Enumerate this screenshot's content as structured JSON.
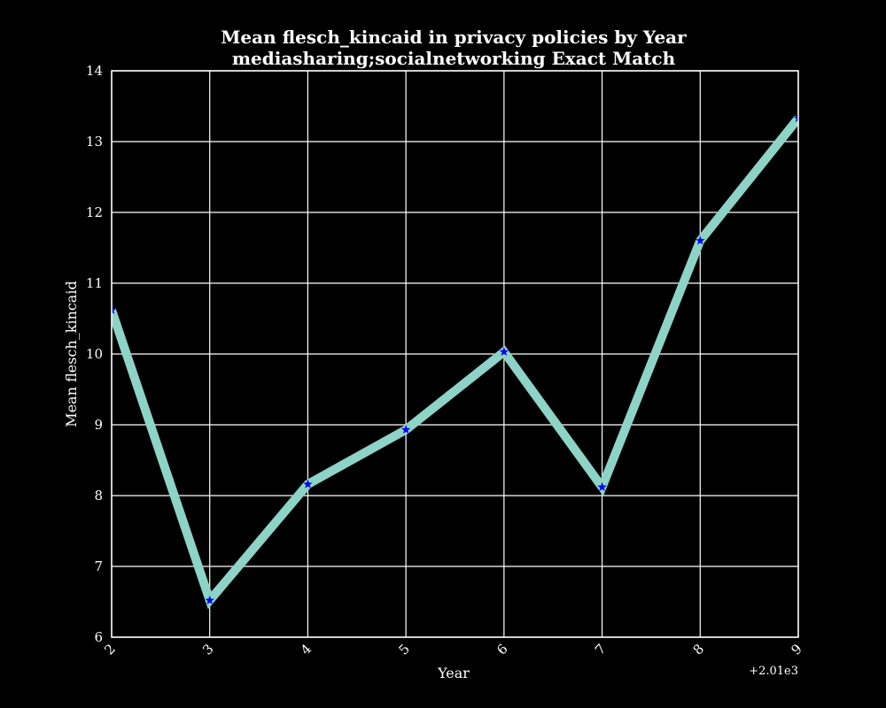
{
  "chart_data": {
    "type": "line",
    "title": "Mean flesch_kincaid in privacy policies by Year",
    "subtitle": "mediasharing;socialnetworking Exact Match",
    "xlabel": "Year",
    "ylabel": "Mean flesch_kincaid",
    "x_offset_label": "+2.01e3",
    "x": [
      2,
      3,
      4,
      5,
      6,
      7,
      8,
      9
    ],
    "x_tick_labels": [
      "2",
      "3",
      "4",
      "5",
      "6",
      "7",
      "8",
      "9"
    ],
    "y_ticks": [
      6,
      7,
      8,
      9,
      10,
      11,
      12,
      13,
      14
    ],
    "y_tick_labels": [
      "6",
      "7",
      "8",
      "9",
      "10",
      "11",
      "12",
      "13",
      "14"
    ],
    "xlim": [
      2,
      9
    ],
    "ylim": [
      6,
      14
    ],
    "grid": true,
    "series": [
      {
        "values": [
          10.62,
          6.52,
          8.16,
          8.93,
          10.03,
          8.12,
          11.6,
          13.33
        ],
        "color": "#8dd3c7",
        "marker": "star",
        "marker_color": "#0000ff"
      }
    ]
  }
}
